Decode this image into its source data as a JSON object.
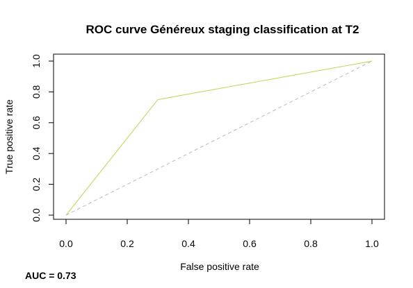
{
  "chart_data": {
    "type": "line",
    "title": "ROC curve Généreux staging classification at T2",
    "xlabel": "False positive rate",
    "ylabel": "True positive rate",
    "xlim": [
      0,
      1
    ],
    "ylim": [
      0,
      1
    ],
    "xticks": [
      "0.0",
      "0.2",
      "0.4",
      "0.6",
      "0.8",
      "1.0"
    ],
    "yticks": [
      "0.0",
      "0.2",
      "0.4",
      "0.6",
      "0.8",
      "1.0"
    ],
    "grid": false,
    "series": [
      {
        "x": [
          0.0,
          0.3,
          1.0
        ],
        "y": [
          0.0,
          0.75,
          1.0
        ],
        "color": "#c8d96a",
        "style": "solid"
      }
    ],
    "reference_line": {
      "x": [
        0.0,
        1.0
      ],
      "y": [
        0.0,
        1.0
      ],
      "color": "#b8b8b8",
      "style": "dashed"
    },
    "annotation": "AUC = 0.73"
  }
}
